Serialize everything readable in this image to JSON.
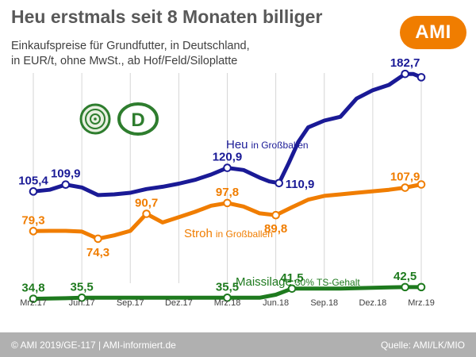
{
  "header": {
    "title": "Heu erstmals seit 8 Monaten billiger",
    "subtitle_line1": "Einkaufspreise für Grundfutter, in Deutschland,",
    "subtitle_line2": "in EUR/t, ohne MwSt., ab Hof/Feld/Siloplatte",
    "logo_text": "AMI",
    "badge_letter": "D"
  },
  "footer": {
    "left": "© AMI 2019/GE-117 | AMI-informiert.de",
    "right": "Quelle: AMI/LK/MIO"
  },
  "colors": {
    "heu": "#1a1a96",
    "stroh": "#f07d00",
    "mais": "#1e7a1e",
    "brand": "#f07d00",
    "footer_bg": "#b0b0b0"
  },
  "chart_data": {
    "type": "line",
    "x_start": "2017-03",
    "x_end": "2019-03",
    "x_ticks": [
      {
        "label": "Mrz.17",
        "x": 0
      },
      {
        "label": "Jun.17",
        "x": 3
      },
      {
        "label": "Sep.17",
        "x": 6
      },
      {
        "label": "Dez.17",
        "x": 9
      },
      {
        "label": "Mrz.18",
        "x": 12
      },
      {
        "label": "Jun.18",
        "x": 15
      },
      {
        "label": "Sep.18",
        "x": 18
      },
      {
        "label": "Dez.18",
        "x": 21
      },
      {
        "label": "Mrz.19",
        "x": 24
      }
    ],
    "ylim": [
      20,
      200
    ],
    "grid": "vertical",
    "series": [
      {
        "key": "heu",
        "name": "Heu",
        "label_suffix": "in Großballen",
        "x": [
          0,
          1,
          2,
          3,
          4,
          5,
          6,
          7,
          8,
          9,
          10,
          11,
          12,
          13,
          14,
          14.6,
          15.2,
          15.8,
          16.4,
          17,
          18,
          19,
          20,
          21,
          22,
          23,
          23.5,
          24
        ],
        "y": [
          105.4,
          106.5,
          109.9,
          108.0,
          103.0,
          103.5,
          104.5,
          107.0,
          108.5,
          110.5,
          113.0,
          116.5,
          120.9,
          119.5,
          114.5,
          112.0,
          110.9,
          124.0,
          138.0,
          147.5,
          152.0,
          154.5,
          166.5,
          172.0,
          175.5,
          182.7,
          182.7,
          180.5
        ],
        "markers": [
          0,
          2,
          12,
          16,
          25,
          27
        ],
        "labels": [
          {
            "text": "105,4",
            "i": 0,
            "pos": "above"
          },
          {
            "text": "109,9",
            "i": 2,
            "pos": "above"
          },
          {
            "text": "120,9",
            "i": 12,
            "pos": "above"
          },
          {
            "text": "110,9",
            "i": 16,
            "pos": "right"
          },
          {
            "text": "182,7",
            "i": 25,
            "pos": "above"
          }
        ]
      },
      {
        "key": "stroh",
        "name": "Stroh",
        "label_suffix": "in Großballen",
        "x": [
          0,
          1,
          2,
          3,
          4,
          5,
          6,
          7,
          8,
          9,
          10,
          11,
          12,
          13,
          14,
          15,
          16,
          17,
          18,
          19,
          20,
          21,
          22,
          23,
          24
        ],
        "y": [
          79.3,
          79.5,
          79.5,
          79.0,
          74.3,
          76.5,
          79.5,
          90.7,
          85.0,
          88.5,
          92.0,
          96.0,
          97.8,
          95.5,
          91.0,
          89.8,
          95.0,
          100.0,
          102.5,
          103.5,
          104.5,
          105.5,
          106.5,
          107.9,
          110.0
        ],
        "markers": [
          0,
          4,
          7,
          12,
          15,
          23,
          24
        ],
        "labels": [
          {
            "text": "79,3",
            "i": 0,
            "pos": "above"
          },
          {
            "text": "74,3",
            "i": 4,
            "pos": "below"
          },
          {
            "text": "90,7",
            "i": 7,
            "pos": "above"
          },
          {
            "text": "97,8",
            "i": 12,
            "pos": "above"
          },
          {
            "text": "89,8",
            "i": 15,
            "pos": "below"
          },
          {
            "text": "107,9",
            "i": 23,
            "pos": "above"
          }
        ]
      },
      {
        "key": "mais",
        "name": "Maissilage",
        "label_suffix": "30% TS-Gehalt",
        "x": [
          0,
          1,
          2,
          3,
          4,
          5,
          6,
          7,
          8,
          9,
          10,
          11,
          12,
          13,
          14,
          15,
          16,
          17,
          18,
          19,
          20,
          21,
          22,
          23,
          24
        ],
        "y": [
          34.8,
          35.0,
          35.2,
          35.5,
          35.5,
          35.5,
          35.5,
          35.5,
          35.5,
          35.5,
          35.5,
          35.5,
          35.5,
          35.5,
          35.5,
          37.5,
          41.5,
          41.5,
          41.5,
          41.5,
          41.8,
          42.0,
          42.3,
          42.5,
          42.5
        ],
        "markers": [
          0,
          3,
          12,
          16,
          23,
          24
        ],
        "labels": [
          {
            "text": "34,8",
            "i": 0,
            "pos": "above"
          },
          {
            "text": "35,5",
            "i": 3,
            "pos": "above"
          },
          {
            "text": "35,5",
            "i": 12,
            "pos": "above"
          },
          {
            "text": "41,5",
            "i": 16,
            "pos": "above"
          },
          {
            "text": "42,5",
            "i": 23,
            "pos": "above"
          }
        ]
      }
    ]
  }
}
